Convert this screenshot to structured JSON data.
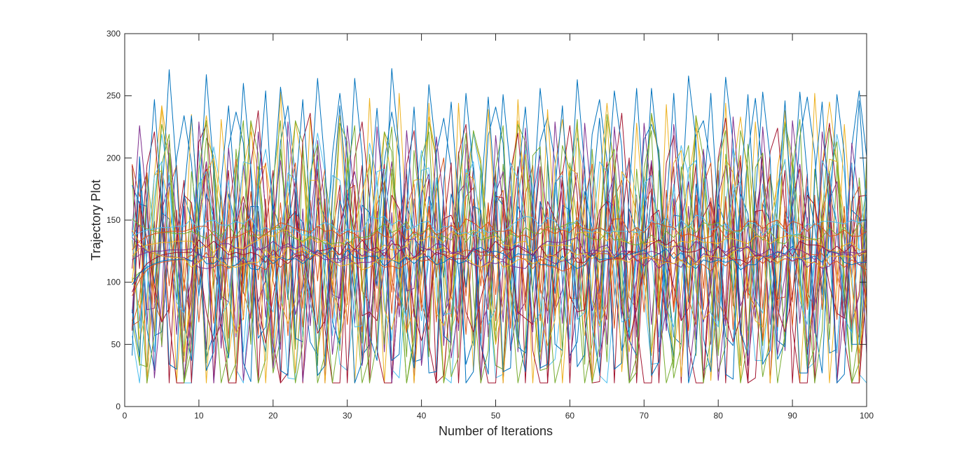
{
  "chart_data": {
    "type": "line",
    "xlabel": "Number of Iterations",
    "ylabel": "Trajectory Plot",
    "xlim": [
      0,
      100
    ],
    "ylim": [
      0,
      300
    ],
    "xticks": [
      0,
      10,
      20,
      30,
      40,
      50,
      60,
      70,
      80,
      90,
      100
    ],
    "yticks": [
      0,
      50,
      100,
      150,
      200,
      250,
      300
    ],
    "x": [
      1,
      2,
      3,
      4,
      5,
      6,
      7,
      8,
      9,
      10,
      11,
      12,
      13,
      14,
      15,
      16,
      17,
      18,
      19,
      20,
      21,
      22,
      23,
      24,
      25,
      26,
      27,
      28,
      29,
      30,
      31,
      32,
      33,
      34,
      35,
      36,
      37,
      38,
      39,
      40,
      41,
      42,
      43,
      44,
      45,
      46,
      47,
      48,
      49,
      50,
      51,
      52,
      53,
      54,
      55,
      56,
      57,
      58,
      59,
      60,
      61,
      62,
      63,
      64,
      65,
      66,
      67,
      68,
      69,
      70,
      71,
      72,
      73,
      74,
      75,
      76,
      77,
      78,
      79,
      80,
      81,
      82,
      83,
      84,
      85,
      86,
      87,
      88,
      89,
      90,
      91,
      92,
      93,
      94,
      95,
      96,
      97,
      98,
      99,
      100
    ],
    "grid": false,
    "box": true,
    "legend": "none",
    "colors": [
      "#0072BD",
      "#D95319",
      "#EDB120",
      "#7E2F8E",
      "#77AC30",
      "#4DBEEE",
      "#A2142F"
    ],
    "series_generation": {
      "oscillating_count": 22,
      "smooth_count": 10,
      "range": [
        19,
        272
      ],
      "smooth_band": [
        95,
        155
      ]
    },
    "series": []
  }
}
